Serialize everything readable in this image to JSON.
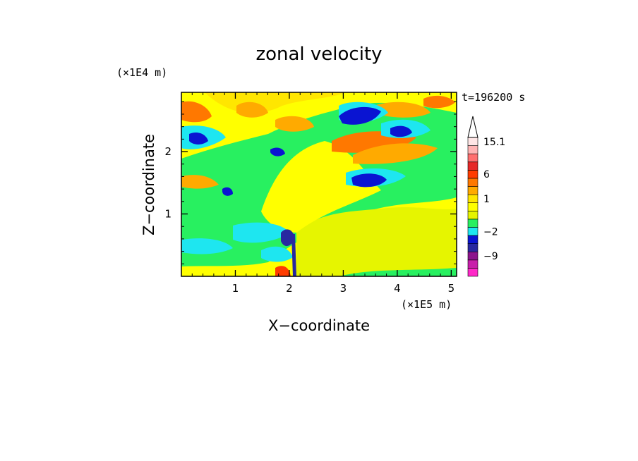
{
  "chart_data": {
    "type": "heatmap",
    "title": "zonal velocity",
    "xlabel": "X−coordinate",
    "ylabel": "Z−coordinate",
    "x_unit": "(×1E5 m)",
    "y_unit": "(×1E4 m)",
    "time_label": "t=196200 s",
    "xlim": [
      0,
      5.1
    ],
    "ylim": [
      0,
      2.95
    ],
    "x_ticks": [
      1,
      2,
      3,
      4,
      5
    ],
    "y_ticks": [
      1,
      2
    ],
    "x_tick_labels": [
      "1",
      "2",
      "3",
      "4",
      "5"
    ],
    "y_tick_labels": [
      "1",
      "2"
    ],
    "colorbar": {
      "labels": [
        {
          "text": "15.1",
          "value": 15.1
        },
        {
          "text": "6",
          "value": 6
        },
        {
          "text": "1",
          "value": 1
        },
        {
          "text": "−2",
          "value": -2
        },
        {
          "text": "−9",
          "value": -9
        }
      ],
      "colors": [
        "#ff28c8",
        "#c81eaa",
        "#8c148c",
        "#2828a0",
        "#0a14d2",
        "#1ee6f0",
        "#28f060",
        "#e6f500",
        "#ffff00",
        "#ffe600",
        "#ffaa00",
        "#ff7800",
        "#ff3c00",
        "#e62828",
        "#ff6e6e",
        "#ffb4b4",
        "#ffe6e6"
      ]
    }
  }
}
